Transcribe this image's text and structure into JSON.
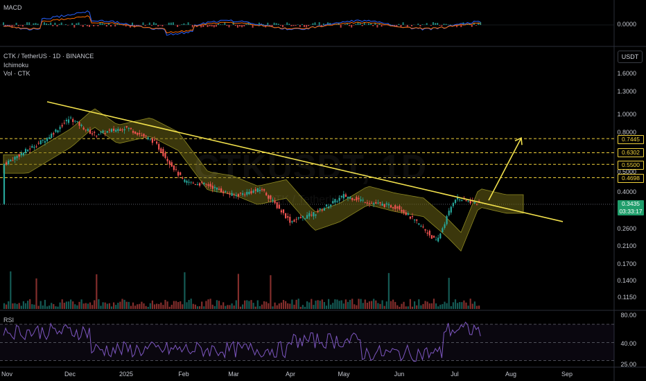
{
  "panes": {
    "macd_title": "MACD",
    "macd_value": "0.0000",
    "main_title": "CTK / TetherUS · 1D · BINANCE",
    "indicator_1": "Ichimoku",
    "indicator_2": "Vol · CTK",
    "rsi_title": "RSI",
    "currency": "USDT",
    "watermark": "CTKUSDT, 1D",
    "watermark_sub": "CTK / TetherUS"
  },
  "price_axis": [
    "1.6000",
    "1.3000",
    "1.0000",
    "0.8000",
    "0.5000",
    "0.4000",
    "0.2600",
    "0.2100",
    "0.1700",
    "0.1400",
    "0.1150"
  ],
  "rsi_axis": [
    "80.00",
    "40.00",
    "25.00"
  ],
  "time_axis": [
    "Nov",
    "Dec",
    "2025",
    "Feb",
    "Mar",
    "Apr",
    "May",
    "Jun",
    "Jul",
    "Aug",
    "Sep"
  ],
  "levels": [
    "0.7445",
    "0.6302",
    "0.5500",
    "0.4698"
  ],
  "last_price": {
    "value": "0.3435",
    "countdown": "03:33:17"
  },
  "colors": {
    "up": "#26a69a",
    "down": "#ef5350",
    "trendline": "#f2e14c",
    "level": "#f2d33c",
    "cloud": "#6b6516",
    "rsi": "#7e57c2",
    "macd": "#2962ff",
    "signal": "#ff6d00",
    "last_price": "#1f9e6b"
  },
  "chart_data": {
    "type": "candlestick",
    "symbol": "CTK / TetherUS",
    "interval": "1D",
    "exchange": "BINANCE",
    "scale": "log",
    "price_anchors": [
      {
        "month": "Nov",
        "close": 0.55
      },
      {
        "month": "mid-Nov",
        "close": 0.75
      },
      {
        "month": "Dec",
        "close": 0.95
      },
      {
        "month": "mid-Dec",
        "close": 0.78
      },
      {
        "month": "2025",
        "close": 0.85
      },
      {
        "month": "mid-Jan",
        "close": 0.72
      },
      {
        "month": "Feb",
        "close": 0.45
      },
      {
        "month": "mid-Feb",
        "close": 0.43
      },
      {
        "month": "Mar",
        "close": 0.38
      },
      {
        "month": "mid-Mar",
        "close": 0.41
      },
      {
        "month": "Apr",
        "close": 0.28
      },
      {
        "month": "mid-Apr",
        "close": 0.31
      },
      {
        "month": "May",
        "close": 0.38
      },
      {
        "month": "mid-May",
        "close": 0.35
      },
      {
        "month": "Jun",
        "close": 0.33
      },
      {
        "month": "mid-Jun",
        "close": 0.26
      },
      {
        "month": "late-Jun",
        "close": 0.22
      },
      {
        "month": "Jul",
        "close": 0.37
      },
      {
        "month": "mid-Jul",
        "close": 0.3435
      }
    ],
    "horizontal_levels": [
      0.7445,
      0.6302,
      0.55,
      0.4698
    ],
    "trendline": {
      "from": {
        "month": "mid-Nov",
        "price": 1.15
      },
      "to": {
        "month": "early-Aug",
        "price": 0.28
      }
    },
    "target_arrow": {
      "from": {
        "month": "mid-Jul",
        "price": 0.36
      },
      "to": {
        "month": "Aug",
        "price": 0.75
      }
    },
    "rsi_levels": [
      80,
      40,
      25
    ]
  }
}
